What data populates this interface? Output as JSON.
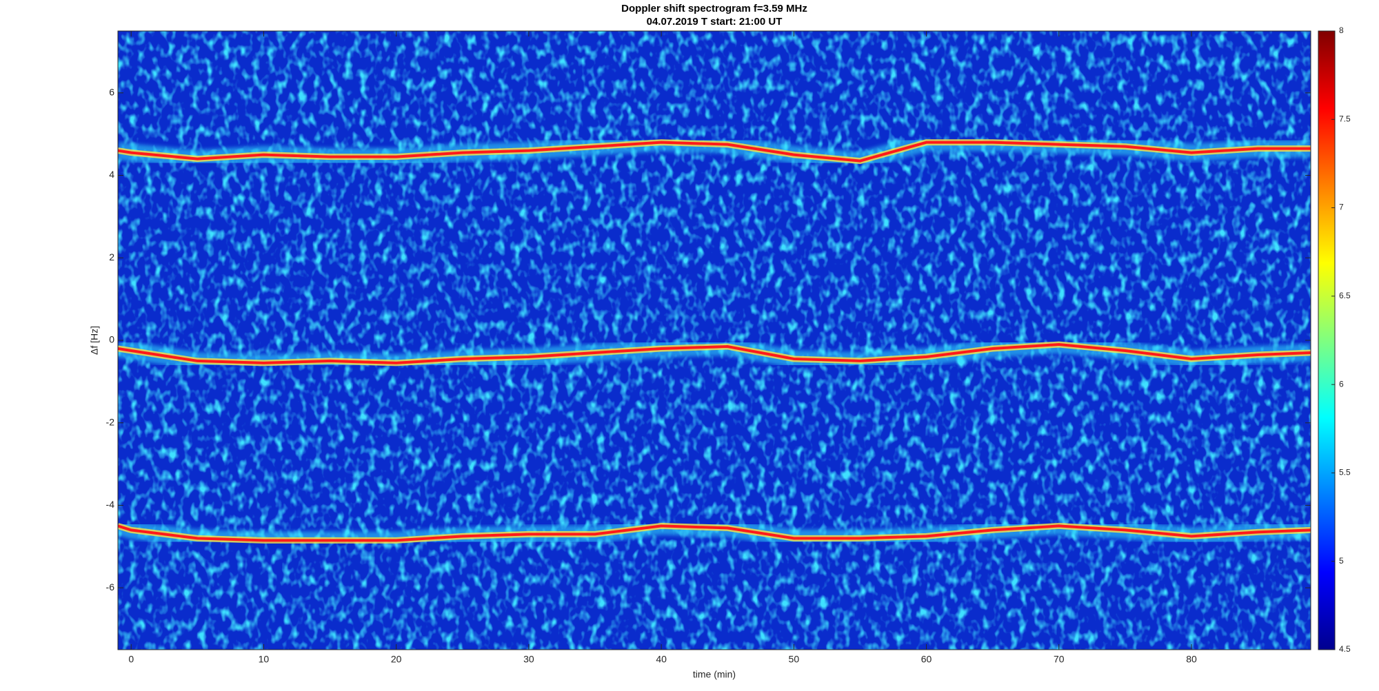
{
  "chart_data": {
    "type": "spectrogram",
    "title": "Doppler shift spectrogram f=3.59 MHz",
    "subtitle": "04.07.2019   T start: 21:00 UT",
    "x_label": "time (min)",
    "y_label": "Δf [Hz]",
    "xlim": [
      -1,
      89
    ],
    "xticks": [
      0,
      10,
      20,
      30,
      40,
      50,
      60,
      70,
      80
    ],
    "ylim": [
      -7.5,
      7.5
    ],
    "yticks": [
      -6,
      -4,
      -2,
      0,
      2,
      4,
      6
    ],
    "colormap": "jet",
    "clim": [
      4.5,
      8
    ],
    "cticks": [
      4.5,
      5,
      5.5,
      6,
      6.5,
      7,
      7.5,
      8
    ],
    "x": [
      -1,
      0,
      5,
      10,
      15,
      20,
      25,
      30,
      35,
      40,
      45,
      50,
      55,
      60,
      65,
      70,
      75,
      80,
      85,
      89
    ],
    "series": [
      {
        "color": "#ff1a1a",
        "values": [
          4.6,
          4.55,
          4.4,
          4.5,
          4.45,
          4.45,
          4.55,
          4.6,
          4.7,
          4.8,
          4.75,
          4.5,
          4.35,
          4.8,
          4.8,
          4.75,
          4.7,
          4.55,
          4.65,
          4.65
        ]
      },
      {
        "color": "#ff1a1a",
        "values": [
          -0.2,
          -0.25,
          -0.5,
          -0.55,
          -0.5,
          -0.55,
          -0.45,
          -0.4,
          -0.3,
          -0.2,
          -0.15,
          -0.45,
          -0.5,
          -0.4,
          -0.2,
          -0.1,
          -0.25,
          -0.45,
          -0.35,
          -0.3
        ]
      },
      {
        "color": "#ff1a1a",
        "values": [
          -4.5,
          -4.6,
          -4.8,
          -4.85,
          -4.85,
          -4.85,
          -4.75,
          -4.7,
          -4.7,
          -4.5,
          -4.55,
          -4.8,
          -4.8,
          -4.75,
          -4.6,
          -4.5,
          -4.6,
          -4.75,
          -4.65,
          -4.6
        ]
      }
    ]
  }
}
